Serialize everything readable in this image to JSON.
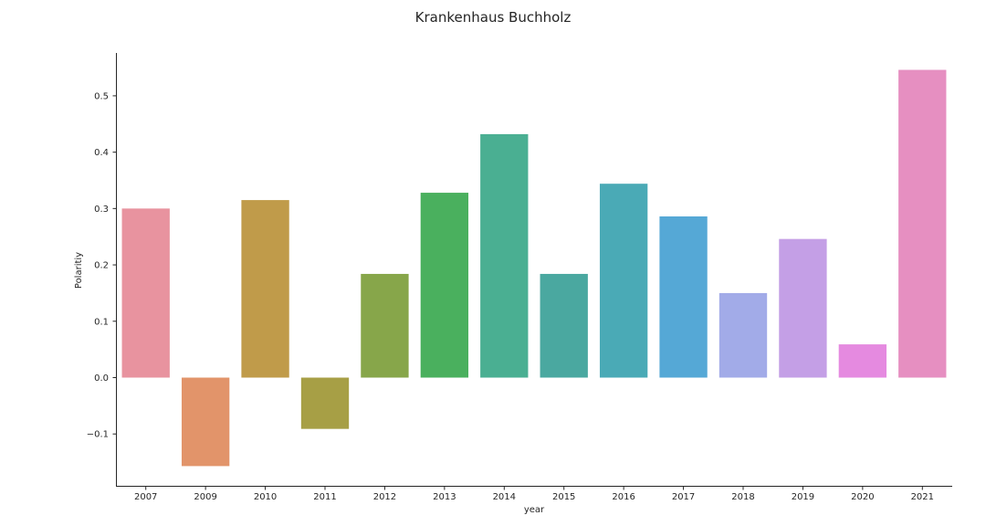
{
  "chart_data": {
    "type": "bar",
    "title": "Krankenhaus Buchholz",
    "xlabel": "year",
    "ylabel": "Polaritiy",
    "categories": [
      "2007",
      "2009",
      "2010",
      "2011",
      "2012",
      "2013",
      "2014",
      "2015",
      "2016",
      "2017",
      "2018",
      "2019",
      "2020",
      "2021"
    ],
    "values": [
      0.3,
      -0.157,
      0.315,
      -0.091,
      0.184,
      0.328,
      0.432,
      0.184,
      0.344,
      0.286,
      0.15,
      0.246,
      0.059,
      0.546
    ],
    "colors": [
      "#e8939f",
      "#e2946a",
      "#c09b4a",
      "#a79f45",
      "#87a64a",
      "#4ab05e",
      "#4aaf92",
      "#4aa8a0",
      "#4aaab6",
      "#55a8d6",
      "#a2abe8",
      "#c49fe6",
      "#e58ae0",
      "#e68fc1"
    ],
    "yticks": [
      -0.1,
      0.0,
      0.1,
      0.2,
      0.3,
      0.4,
      0.5
    ],
    "ytick_labels": [
      "−0.1",
      "0.0",
      "0.1",
      "0.2",
      "0.3",
      "0.4",
      "0.5"
    ],
    "ylim": [
      -0.192,
      0.576
    ],
    "grid": false,
    "legend": "none"
  }
}
